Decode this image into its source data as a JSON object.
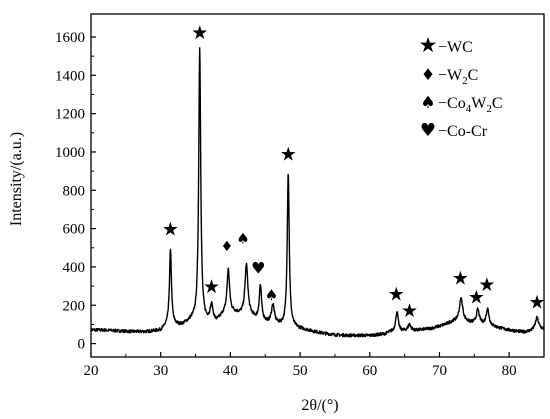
{
  "chart_data": {
    "type": "line",
    "xlabel": "2θ/(°)",
    "ylabel": "Intensity/(a.u.)",
    "xlim": [
      20,
      85
    ],
    "ylim": [
      -70,
      1720
    ],
    "xticks": [
      20,
      30,
      40,
      50,
      60,
      70,
      80
    ],
    "yticks": [
      0,
      200,
      400,
      600,
      800,
      1000,
      1200,
      1400,
      1600
    ],
    "grid": false,
    "legend_position": "top-right",
    "legend": [
      {
        "symbol": "star",
        "label_parts": [
          "−WC"
        ]
      },
      {
        "symbol": "diamond",
        "label_parts": [
          "−W",
          "2",
          "C"
        ]
      },
      {
        "symbol": "spade",
        "label_parts": [
          "−Co",
          "4",
          "W",
          "2",
          "C"
        ]
      },
      {
        "symbol": "heart",
        "label_parts": [
          "−Co-Cr"
        ]
      }
    ],
    "baseline": [
      [
        20.0,
        72
      ],
      [
        22.0,
        70
      ],
      [
        24.0,
        66
      ],
      [
        26.0,
        62
      ],
      [
        28.0,
        62
      ],
      [
        30.0,
        68
      ],
      [
        31.0,
        95
      ],
      [
        33.0,
        95
      ],
      [
        34.5,
        120
      ],
      [
        36.5,
        110
      ],
      [
        38.0,
        110
      ],
      [
        39.0,
        150
      ],
      [
        40.5,
        160
      ],
      [
        41.5,
        150
      ],
      [
        43.0,
        140
      ],
      [
        44.0,
        120
      ],
      [
        45.5,
        105
      ],
      [
        47.0,
        95
      ],
      [
        48.0,
        90
      ],
      [
        49.5,
        80
      ],
      [
        51.0,
        70
      ],
      [
        53.0,
        55
      ],
      [
        55.0,
        45
      ],
      [
        57.0,
        42
      ],
      [
        60.0,
        42
      ],
      [
        62.0,
        48
      ],
      [
        63.0,
        60
      ],
      [
        65.0,
        65
      ],
      [
        67.0,
        70
      ],
      [
        69.0,
        80
      ],
      [
        70.5,
        95
      ],
      [
        72.0,
        115
      ],
      [
        74.0,
        110
      ],
      [
        76.0,
        100
      ],
      [
        78.0,
        85
      ],
      [
        80.0,
        70
      ],
      [
        82.0,
        60
      ],
      [
        83.0,
        65
      ],
      [
        84.0,
        80
      ],
      [
        85.0,
        75
      ]
    ],
    "peaks": [
      {
        "x": 31.4,
        "y": 485,
        "w": 0.17
      },
      {
        "x": 35.6,
        "y": 1540,
        "w": 0.17
      },
      {
        "x": 37.3,
        "y": 195,
        "w": 0.25
      },
      {
        "x": 39.7,
        "y": 385,
        "w": 0.22
      },
      {
        "x": 42.3,
        "y": 410,
        "w": 0.25
      },
      {
        "x": 44.3,
        "y": 300,
        "w": 0.2
      },
      {
        "x": 46.1,
        "y": 200,
        "w": 0.25
      },
      {
        "x": 48.3,
        "y": 890,
        "w": 0.17
      },
      {
        "x": 63.9,
        "y": 165,
        "w": 0.22
      },
      {
        "x": 65.7,
        "y": 100,
        "w": 0.25
      },
      {
        "x": 73.1,
        "y": 235,
        "w": 0.3
      },
      {
        "x": 75.5,
        "y": 175,
        "w": 0.25
      },
      {
        "x": 76.9,
        "y": 180,
        "w": 0.25
      },
      {
        "x": 84.0,
        "y": 135,
        "w": 0.25
      }
    ],
    "peak_markers": [
      {
        "symbol": "star",
        "x": 31.4,
        "y": 600
      },
      {
        "symbol": "star",
        "x": 35.6,
        "y": 1625
      },
      {
        "symbol": "star",
        "x": 37.3,
        "y": 300
      },
      {
        "symbol": "diamond",
        "x": 39.5,
        "y": 510
      },
      {
        "symbol": "spade",
        "x": 41.8,
        "y": 550
      },
      {
        "symbol": "heart",
        "x": 44.0,
        "y": 395
      },
      {
        "symbol": "spade",
        "x": 45.9,
        "y": 255
      },
      {
        "symbol": "star",
        "x": 48.3,
        "y": 990
      },
      {
        "symbol": "star",
        "x": 63.8,
        "y": 260
      },
      {
        "symbol": "star",
        "x": 65.7,
        "y": 175
      },
      {
        "symbol": "star",
        "x": 73.0,
        "y": 345
      },
      {
        "symbol": "star",
        "x": 75.3,
        "y": 245
      },
      {
        "symbol": "star",
        "x": 76.8,
        "y": 310
      },
      {
        "symbol": "star",
        "x": 84.0,
        "y": 220
      }
    ],
    "colors": {
      "line": "#000000",
      "axis": "#000000"
    }
  }
}
